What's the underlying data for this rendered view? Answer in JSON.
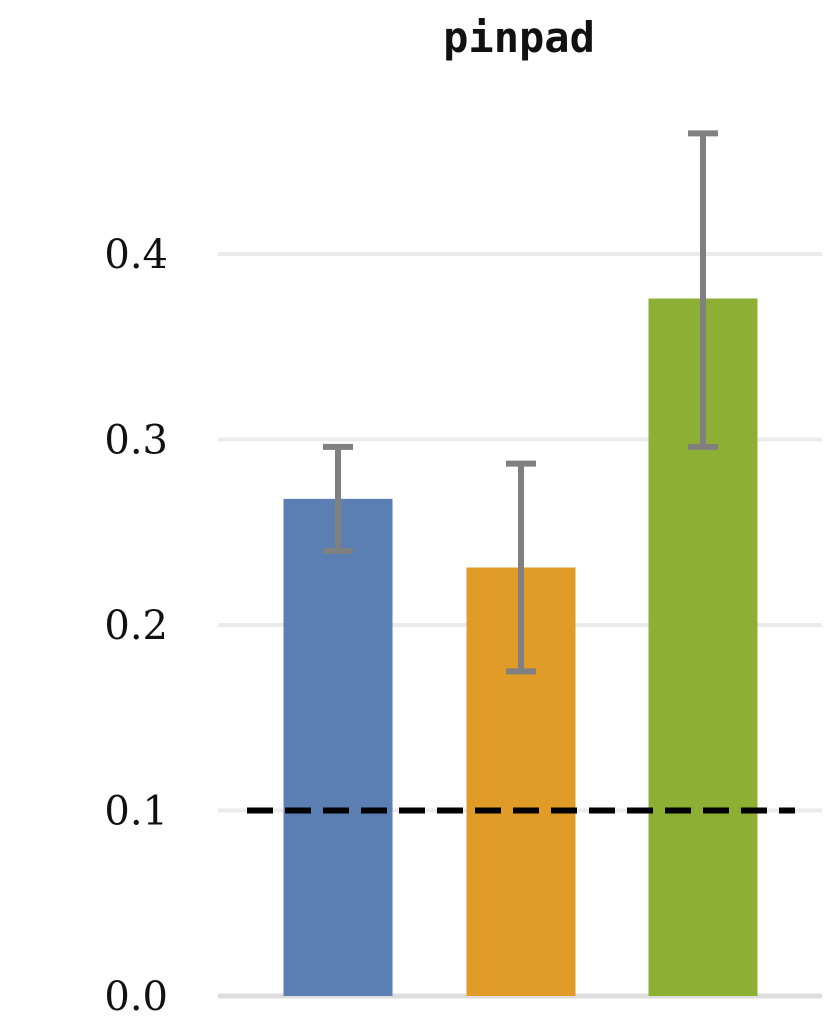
{
  "chart_data": {
    "type": "bar",
    "title": "pinpad",
    "xlabel": "",
    "ylabel": "",
    "ylim": [
      0.0,
      0.46
    ],
    "yticks": [
      "0.0",
      "0.1",
      "0.2",
      "0.3",
      "0.4"
    ],
    "yticks_values": [
      0.0,
      0.1,
      0.2,
      0.3,
      0.4
    ],
    "grid": true,
    "legend": "none",
    "categories": [
      "",
      "",
      ""
    ],
    "values": [
      0.268,
      0.231,
      0.376
    ],
    "error_low": [
      0.24,
      0.175,
      0.296
    ],
    "error_high": [
      0.296,
      0.287,
      0.465
    ],
    "colors": [
      "#5b7fb2",
      "#e09c27",
      "#8daf33"
    ],
    "error_color": "#808080",
    "reference_line": {
      "y": 0.1,
      "style": "dashed",
      "color": "#000000"
    },
    "grid_color": "#ebebeb"
  }
}
